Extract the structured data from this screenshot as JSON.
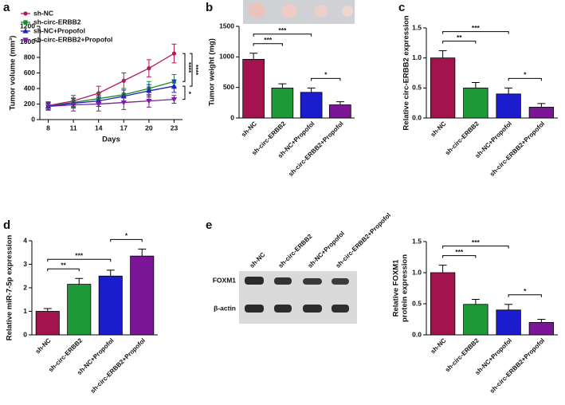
{
  "chart_data": [
    {
      "type": "line",
      "label": "a",
      "xlabel": "Days",
      "ylabel": "Tumor volume (mm³)",
      "x": [
        8,
        11,
        14,
        17,
        20,
        23
      ],
      "xlim": [
        7,
        24
      ],
      "xticks": [
        8,
        11,
        14,
        17,
        20,
        23
      ],
      "ylim": [
        0,
        1200
      ],
      "yticks": [
        0,
        200,
        400,
        600,
        800,
        1000,
        1200
      ],
      "legend": "upper left",
      "series": [
        {
          "name": "sh-NC",
          "color": "#b5195b",
          "marker": "circle",
          "values": [
            180,
            240,
            340,
            500,
            660,
            850
          ],
          "errors": [
            50,
            70,
            90,
            100,
            110,
            120
          ]
        },
        {
          "name": "sh-circ-ERBB2",
          "color": "#1a8c2e",
          "marker": "square",
          "values": [
            175,
            220,
            270,
            320,
            400,
            490
          ],
          "errors": [
            40,
            60,
            70,
            80,
            90,
            90
          ]
        },
        {
          "name": "sh-NC+Propofol",
          "color": "#1f1fbf",
          "marker": "triangle",
          "values": [
            170,
            210,
            240,
            300,
            370,
            430
          ],
          "errors": [
            40,
            60,
            70,
            80,
            80,
            80
          ]
        },
        {
          "name": "sh-circ-ERBB2+Propofol",
          "color": "#7a1fa0",
          "marker": "triangle-down",
          "values": [
            170,
            190,
            200,
            220,
            240,
            260
          ],
          "errors": [
            50,
            80,
            90,
            90,
            80,
            50
          ]
        }
      ],
      "significance": [
        {
          "label": "****",
          "between": [
            "sh-NC",
            "sh-circ-ERBB2"
          ]
        },
        {
          "label": "****",
          "between": [
            "sh-NC",
            "sh-NC+Propofol"
          ]
        },
        {
          "label": "*",
          "between": [
            "sh-NC+Propofol",
            "sh-circ-ERBB2+Propofol"
          ]
        }
      ]
    },
    {
      "type": "bar",
      "label": "b",
      "ylabel": "Tumor weight (mg)",
      "categories": [
        "sh-NC",
        "sh-circ-ERBB2",
        "sh-NC+Propofol",
        "sh-circ-ERBB2+Propofol"
      ],
      "values": [
        960,
        490,
        420,
        215
      ],
      "errors": [
        100,
        70,
        70,
        50
      ],
      "colors": [
        "#a3144f",
        "#1e9a38",
        "#1c1ccf",
        "#7b1696"
      ],
      "ylim": [
        0,
        1500
      ],
      "yticks": [
        0,
        500,
        1000,
        1500
      ],
      "significance": [
        {
          "label": "***",
          "between": [
            "sh-NC",
            "sh-circ-ERBB2"
          ]
        },
        {
          "label": "***",
          "between": [
            "sh-NC",
            "sh-NC+Propofol"
          ]
        },
        {
          "label": "*",
          "between": [
            "sh-NC+Propofol",
            "sh-circ-ERBB2+Propofol"
          ]
        }
      ]
    },
    {
      "type": "bar",
      "label": "c",
      "ylabel": "Relative circ-ERBB2 expression",
      "categories": [
        "sh-NC",
        "sh-circ-ERBB2",
        "sh-NC+Propofol",
        "sh-circ-ERBB2+Propofol"
      ],
      "values": [
        1.0,
        0.5,
        0.4,
        0.18
      ],
      "errors": [
        0.12,
        0.09,
        0.1,
        0.06
      ],
      "colors": [
        "#a3144f",
        "#1e9a38",
        "#1c1ccf",
        "#7b1696"
      ],
      "ylim": [
        0,
        1.5
      ],
      "yticks": [
        {
          "value": 0,
          "label": "0.0"
        },
        0.5,
        {
          "value": 1,
          "label": "1.0"
        },
        1.5
      ],
      "significance": [
        {
          "label": "**",
          "between": [
            "sh-NC",
            "sh-circ-ERBB2"
          ]
        },
        {
          "label": "***",
          "between": [
            "sh-NC",
            "sh-NC+Propofol"
          ]
        },
        {
          "label": "*",
          "between": [
            "sh-NC+Propofol",
            "sh-circ-ERBB2+Propofol"
          ]
        }
      ]
    },
    {
      "type": "bar",
      "label": "d",
      "ylabel": "Relative miR-7-5p expression",
      "categories": [
        "sh-NC",
        "sh-circ-ERBB2",
        "sh-NC+Propofol",
        "sh-circ-ERBB2+Propofol"
      ],
      "values": [
        1.0,
        2.15,
        2.5,
        3.35
      ],
      "errors": [
        0.12,
        0.25,
        0.25,
        0.3
      ],
      "colors": [
        "#a3144f",
        "#1e9a38",
        "#1c1ccf",
        "#7b1696"
      ],
      "ylim": [
        0,
        4
      ],
      "yticks": [
        0,
        1,
        2,
        3,
        4
      ],
      "significance": [
        {
          "label": "**",
          "between": [
            "sh-NC",
            "sh-circ-ERBB2"
          ]
        },
        {
          "label": "***",
          "between": [
            "sh-NC",
            "sh-NC+Propofol"
          ]
        },
        {
          "label": "*",
          "between": [
            "sh-NC+Propofol",
            "sh-circ-ERBB2+Propofol"
          ]
        }
      ]
    },
    {
      "type": "bar",
      "label": "e",
      "ylabel": [
        "Relative FOXM1",
        "protein expression"
      ],
      "categories": [
        "sh-NC",
        "sh-circ-ERBB2",
        "sh-NC+Propofol",
        "sh-circ-ERBB2+Propofol"
      ],
      "values": [
        1.0,
        0.49,
        0.4,
        0.2
      ],
      "errors": [
        0.12,
        0.08,
        0.09,
        0.05
      ],
      "colors": [
        "#a3144f",
        "#1e9a38",
        "#1c1ccf",
        "#7b1696"
      ],
      "ylim": [
        0,
        1.5
      ],
      "yticks": [
        {
          "value": 0,
          "label": "0.0"
        },
        0.5,
        {
          "value": 1,
          "label": "1.0"
        },
        1.5
      ],
      "significance": [
        {
          "label": "***",
          "between": [
            "sh-NC",
            "sh-circ-ERBB2"
          ]
        },
        {
          "label": "***",
          "between": [
            "sh-NC",
            "sh-NC+Propofol"
          ]
        },
        {
          "label": "*",
          "between": [
            "sh-NC+Propofol",
            "sh-circ-ERBB2+Propofol"
          ]
        }
      ],
      "blot": {
        "lanes": [
          "sh-NC",
          "sh-circ-ERBB2",
          "sh-NC+Propofol",
          "sh-circ-ERBB2+Propofol"
        ],
        "rows": [
          "FOXM1",
          "β-actin"
        ]
      }
    }
  ]
}
